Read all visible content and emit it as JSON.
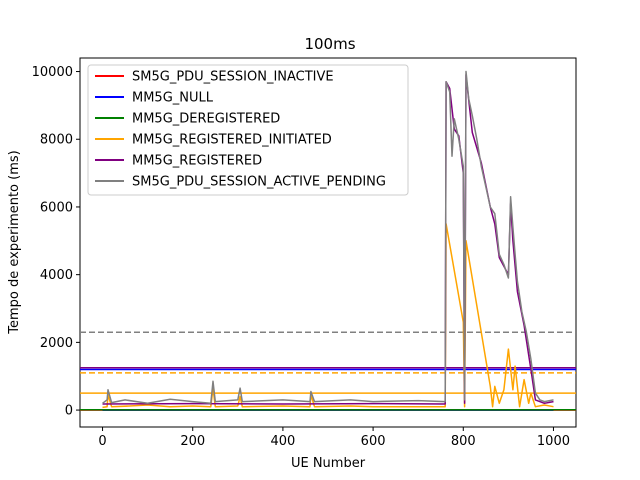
{
  "chart_data": {
    "type": "line",
    "title": "100ms",
    "xlabel": "UE Number",
    "ylabel": "Tempo de experimento (ms)",
    "xlim": [
      -50,
      1050
    ],
    "ylim": [
      -500,
      10400
    ],
    "xticks": [
      0,
      200,
      400,
      600,
      800,
      1000
    ],
    "yticks": [
      0,
      2000,
      4000,
      6000,
      8000,
      10000
    ],
    "grid": false,
    "legend_position": "top-left",
    "series": [
      {
        "name": "SM5G_PDU_SESSION_INACTIVE",
        "color": "#ff0000",
        "mean": 0,
        "points": [
          [
            0,
            0
          ],
          [
            1000,
            0
          ]
        ]
      },
      {
        "name": "MM5G_NULL",
        "color": "#0000ff",
        "mean": 1200,
        "points": [
          [
            0,
            0
          ],
          [
            1000,
            0
          ]
        ]
      },
      {
        "name": "MM5G_DEREGISTERED",
        "color": "#008000",
        "mean": 10,
        "points": [
          [
            0,
            5
          ],
          [
            1000,
            5
          ]
        ]
      },
      {
        "name": "MM5G_REGISTERED_INITIATED",
        "color": "#ffa500",
        "mean": 1100,
        "points": [
          [
            0,
            80
          ],
          [
            10,
            100
          ],
          [
            12,
            450
          ],
          [
            20,
            100
          ],
          [
            60,
            120
          ],
          [
            100,
            150
          ],
          [
            150,
            100
          ],
          [
            200,
            120
          ],
          [
            240,
            100
          ],
          [
            245,
            650
          ],
          [
            250,
            100
          ],
          [
            300,
            120
          ],
          [
            305,
            400
          ],
          [
            310,
            100
          ],
          [
            400,
            120
          ],
          [
            460,
            100
          ],
          [
            462,
            450
          ],
          [
            470,
            100
          ],
          [
            550,
            120
          ],
          [
            600,
            100
          ],
          [
            700,
            100
          ],
          [
            760,
            100
          ],
          [
            762,
            5500
          ],
          [
            800,
            2600
          ],
          [
            803,
            100
          ],
          [
            806,
            5000
          ],
          [
            860,
            700
          ],
          [
            865,
            100
          ],
          [
            870,
            700
          ],
          [
            880,
            200
          ],
          [
            890,
            600
          ],
          [
            900,
            1800
          ],
          [
            910,
            600
          ],
          [
            915,
            1300
          ],
          [
            925,
            100
          ],
          [
            935,
            900
          ],
          [
            945,
            200
          ],
          [
            950,
            500
          ],
          [
            960,
            100
          ],
          [
            980,
            150
          ],
          [
            1000,
            100
          ]
        ]
      },
      {
        "name": "MM5G_REGISTERED",
        "color": "#800080",
        "mean": 1250,
        "points": [
          [
            0,
            180
          ],
          [
            200,
            190
          ],
          [
            400,
            180
          ],
          [
            600,
            190
          ],
          [
            760,
            180
          ],
          [
            762,
            9700
          ],
          [
            770,
            9500
          ],
          [
            780,
            8300
          ],
          [
            790,
            8100
          ],
          [
            800,
            7000
          ],
          [
            803,
            200
          ],
          [
            806,
            9900
          ],
          [
            820,
            8200
          ],
          [
            840,
            7300
          ],
          [
            860,
            6000
          ],
          [
            870,
            5500
          ],
          [
            880,
            4500
          ],
          [
            900,
            4000
          ],
          [
            905,
            6100
          ],
          [
            910,
            5000
          ],
          [
            920,
            3500
          ],
          [
            935,
            2500
          ],
          [
            950,
            1200
          ],
          [
            960,
            300
          ],
          [
            980,
            200
          ],
          [
            1000,
            250
          ]
        ]
      },
      {
        "name": "SM5G_PDU_SESSION_ACTIVE_PENDING",
        "color": "#808080",
        "mean": 2300,
        "points": [
          [
            0,
            200
          ],
          [
            10,
            300
          ],
          [
            12,
            600
          ],
          [
            20,
            220
          ],
          [
            50,
            300
          ],
          [
            100,
            200
          ],
          [
            150,
            320
          ],
          [
            200,
            250
          ],
          [
            240,
            200
          ],
          [
            245,
            850
          ],
          [
            250,
            250
          ],
          [
            300,
            300
          ],
          [
            305,
            650
          ],
          [
            310,
            250
          ],
          [
            400,
            300
          ],
          [
            460,
            250
          ],
          [
            462,
            550
          ],
          [
            470,
            250
          ],
          [
            550,
            300
          ],
          [
            600,
            250
          ],
          [
            700,
            280
          ],
          [
            760,
            250
          ],
          [
            762,
            9700
          ],
          [
            770,
            9400
          ],
          [
            775,
            7500
          ],
          [
            780,
            8600
          ],
          [
            790,
            8000
          ],
          [
            800,
            7200
          ],
          [
            803,
            300
          ],
          [
            806,
            10000
          ],
          [
            812,
            9200
          ],
          [
            820,
            8700
          ],
          [
            830,
            8000
          ],
          [
            840,
            7200
          ],
          [
            850,
            6600
          ],
          [
            860,
            6000
          ],
          [
            870,
            5800
          ],
          [
            880,
            4600
          ],
          [
            890,
            4300
          ],
          [
            900,
            3900
          ],
          [
            905,
            6300
          ],
          [
            910,
            5400
          ],
          [
            915,
            4600
          ],
          [
            920,
            3800
          ],
          [
            930,
            2900
          ],
          [
            940,
            2300
          ],
          [
            950,
            1500
          ],
          [
            960,
            500
          ],
          [
            970,
            300
          ],
          [
            980,
            250
          ],
          [
            1000,
            300
          ]
        ]
      }
    ]
  }
}
